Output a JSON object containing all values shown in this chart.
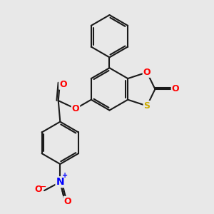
{
  "background_color": "#e8e8e8",
  "bond_color": "#1a1a1a",
  "bond_width": 1.5,
  "atom_colors": {
    "O": "#ff0000",
    "S": "#ccaa00",
    "N": "#0000ff",
    "C": "#1a1a1a"
  },
  "font_size": 9
}
